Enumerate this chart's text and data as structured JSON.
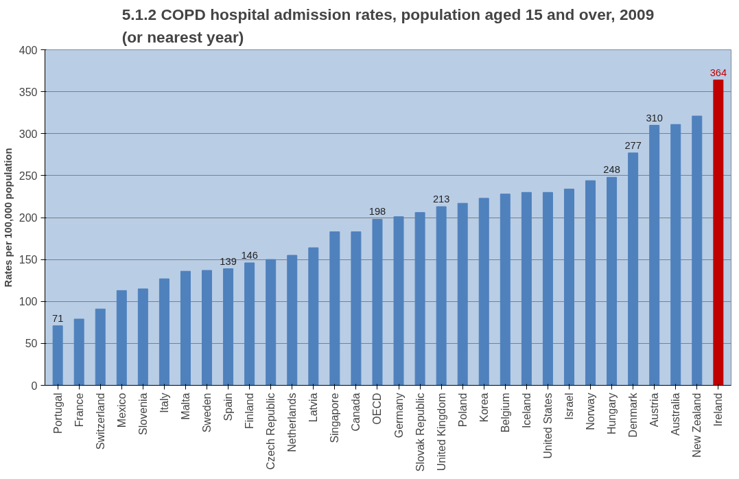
{
  "chart_data": {
    "type": "bar",
    "title": "5.1.2 COPD hospital admission rates, population aged 15 and over, 2009\n(or nearest year)",
    "ylabel": "Rates per 100,000 population",
    "categories": [
      "Portugal",
      "France",
      "Switzerland",
      "Mexico",
      "Slovenia",
      "Italy",
      "Malta",
      "Sweden",
      "Spain",
      "Finland",
      "Czech Republic",
      "Netherlands",
      "Latvia",
      "Singapore",
      "Canada",
      "OECD",
      "Germany",
      "Slovak Republic",
      "United Kingdom",
      "Poland",
      "Korea",
      "Belgium",
      "Iceland",
      "United States",
      "Israel",
      "Norway",
      "Hungary",
      "Denmark",
      "Austria",
      "Australia",
      "New Zealand",
      "Ireland"
    ],
    "values": [
      71,
      79,
      91,
      113,
      115,
      127,
      136,
      137,
      139,
      146,
      150,
      155,
      164,
      183,
      183,
      198,
      201,
      206,
      213,
      217,
      223,
      228,
      230,
      230,
      234,
      244,
      248,
      277,
      310,
      311,
      321,
      364
    ],
    "value_labels": [
      "71",
      null,
      null,
      null,
      null,
      null,
      null,
      null,
      "139",
      "146",
      null,
      null,
      null,
      null,
      null,
      "198",
      null,
      null,
      "213",
      null,
      null,
      null,
      null,
      null,
      null,
      null,
      "248",
      "277",
      "310",
      null,
      null,
      "364"
    ],
    "colors": [
      "#4f81bd",
      "#4f81bd",
      "#4f81bd",
      "#4f81bd",
      "#4f81bd",
      "#4f81bd",
      "#4f81bd",
      "#4f81bd",
      "#4f81bd",
      "#4f81bd",
      "#4f81bd",
      "#4f81bd",
      "#4f81bd",
      "#4f81bd",
      "#4f81bd",
      "#4f81bd",
      "#4f81bd",
      "#4f81bd",
      "#4f81bd",
      "#4f81bd",
      "#4f81bd",
      "#4f81bd",
      "#4f81bd",
      "#4f81bd",
      "#4f81bd",
      "#4f81bd",
      "#4f81bd",
      "#4f81bd",
      "#4f81bd",
      "#4f81bd",
      "#4f81bd",
      "#c00000"
    ],
    "ylim": [
      0,
      400
    ],
    "yticks": [
      0,
      50,
      100,
      150,
      200,
      250,
      300,
      350,
      400
    ],
    "grid": "y"
  }
}
